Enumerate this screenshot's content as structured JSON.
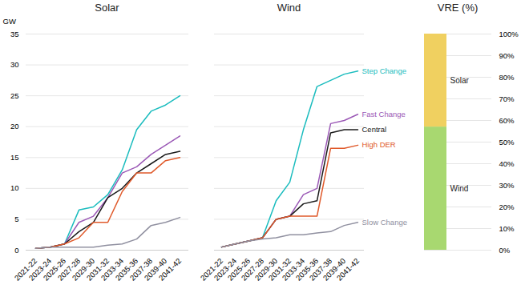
{
  "chart_data": [
    {
      "type": "line",
      "title": "Solar",
      "ylabel": "GW",
      "categories": [
        "2021-22",
        "2023-24",
        "2025-26",
        "2027-28",
        "2029-30",
        "2031-32",
        "2033-34",
        "2035-36",
        "2037-38",
        "2039-40",
        "2041-42"
      ],
      "series": [
        {
          "name": "Step Change",
          "color": "#1ABCBE",
          "values": [
            0.3,
            0.5,
            1.0,
            6.5,
            7.0,
            9.0,
            13.0,
            19.5,
            22.5,
            23.5,
            25.0
          ]
        },
        {
          "name": "Fast Change",
          "color": "#9B59B6",
          "values": [
            0.3,
            0.5,
            1.0,
            4.5,
            5.5,
            8.5,
            12.5,
            13.5,
            15.5,
            17.0,
            18.5
          ]
        },
        {
          "name": "Central",
          "color": "#1A1A1A",
          "values": [
            0.3,
            0.5,
            1.0,
            3.0,
            4.5,
            8.5,
            10.0,
            12.5,
            14.0,
            15.5,
            16.0
          ]
        },
        {
          "name": "High DER",
          "color": "#E05A2B",
          "values": [
            0.3,
            0.5,
            1.0,
            2.0,
            4.5,
            4.5,
            9.5,
            12.5,
            12.5,
            14.5,
            15.0
          ]
        },
        {
          "name": "Slow Change",
          "color": "#9090A0",
          "values": [
            0.3,
            0.5,
            0.5,
            0.5,
            0.5,
            0.8,
            1.0,
            1.8,
            4.0,
            4.5,
            5.3
          ]
        }
      ],
      "ylim": [
        0,
        35
      ],
      "yticks": [
        0,
        5,
        10,
        15,
        20,
        25,
        30,
        35
      ],
      "grid": true
    },
    {
      "type": "line",
      "title": "Wind",
      "categories": [
        "2021-22",
        "2023-24",
        "2025-26",
        "2027-28",
        "2029-30",
        "2031-32",
        "2033-34",
        "2035-36",
        "2037-38",
        "2039-40",
        "2041-42"
      ],
      "series": [
        {
          "name": "Step Change",
          "color": "#1ABCBE",
          "values": [
            0.5,
            1.0,
            1.5,
            2.0,
            8.0,
            11.0,
            19.5,
            26.5,
            27.5,
            28.5,
            29.0
          ]
        },
        {
          "name": "Fast Change",
          "color": "#9B59B6",
          "values": [
            0.5,
            1.0,
            1.5,
            2.0,
            5.0,
            5.5,
            9.0,
            10.0,
            20.5,
            21.0,
            22.0
          ]
        },
        {
          "name": "Central",
          "color": "#1A1A1A",
          "values": [
            0.5,
            1.0,
            1.5,
            2.0,
            5.0,
            5.5,
            7.5,
            8.0,
            19.0,
            19.5,
            19.5
          ]
        },
        {
          "name": "High DER",
          "color": "#E05A2B",
          "values": [
            0.5,
            1.0,
            1.5,
            2.0,
            5.0,
            5.5,
            5.5,
            5.5,
            16.5,
            16.5,
            17.0
          ]
        },
        {
          "name": "Slow Change",
          "color": "#9090A0",
          "values": [
            0.5,
            1.0,
            1.5,
            1.8,
            2.0,
            2.5,
            2.5,
            2.8,
            3.0,
            4.0,
            4.5
          ]
        }
      ],
      "ylim": [
        0,
        35
      ],
      "yticks": [
        0,
        5,
        10,
        15,
        20,
        25,
        30,
        35
      ],
      "grid": true,
      "tick_labels": "x",
      "legend": "right"
    },
    {
      "type": "bar",
      "title": "VRE (%)",
      "stacked": true,
      "categories": [
        null
      ],
      "series": [
        {
          "name": "Wind",
          "color": "#A8D870",
          "values": [
            0.57
          ]
        },
        {
          "name": "Solar",
          "color": "#F0D060",
          "values": [
            0.43
          ]
        }
      ],
      "ylim": [
        0,
        1
      ],
      "yticks": [
        {
          "value": 0,
          "label": "0%"
        },
        {
          "value": 0.1,
          "label": "10%"
        },
        {
          "value": 0.2,
          "label": "20%"
        },
        {
          "value": 0.3,
          "label": "30%"
        },
        {
          "value": 0.4,
          "label": "40%"
        },
        {
          "value": 0.5,
          "label": "50%"
        },
        {
          "value": 0.6,
          "label": "60%"
        },
        {
          "value": 0.7,
          "label": "70%"
        },
        {
          "value": 0.8,
          "label": "80%"
        },
        {
          "value": 0.9,
          "label": "90%"
        },
        {
          "value": 1.0,
          "label": "100%"
        }
      ],
      "grid": true,
      "tick_labels": "y",
      "legend": "right"
    }
  ]
}
